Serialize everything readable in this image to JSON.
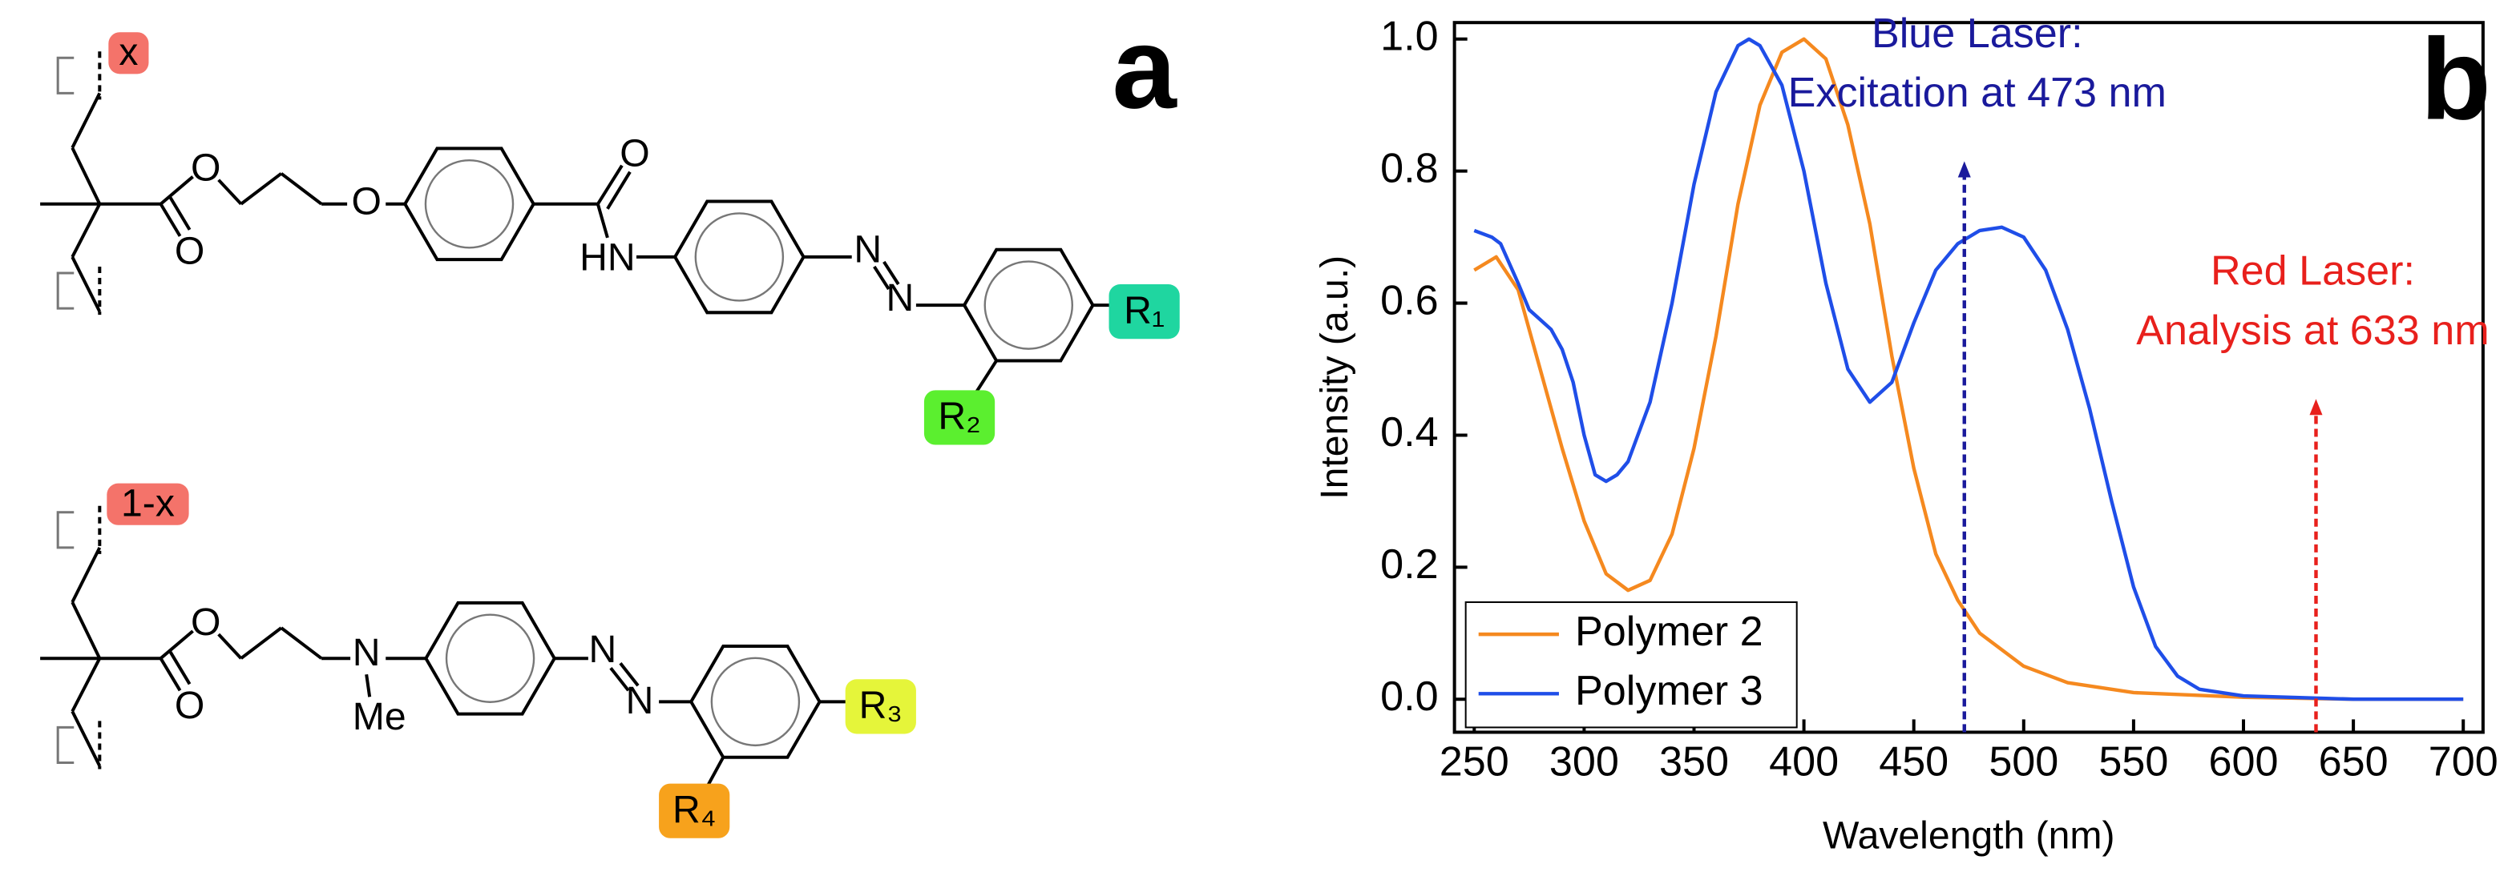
{
  "panels": [
    "a",
    "b"
  ],
  "structures": [
    {
      "fraction": "x",
      "atoms": [
        "O",
        "O",
        "O",
        "O",
        "HN",
        "N",
        "N"
      ],
      "substituents": [
        "R₁",
        "R₂"
      ]
    },
    {
      "fraction": "1-x",
      "atoms": [
        "O",
        "O",
        "N",
        "Me",
        "N",
        "N"
      ],
      "substituents": [
        "R₃",
        "R₄"
      ]
    }
  ],
  "chart_data": {
    "type": "line",
    "x_label": "Wavelength (nm)",
    "y_label": "Intensity (a.u.)",
    "xlim": [
      241,
      709
    ],
    "ylim": [
      -0.05,
      1.025
    ],
    "xticks": [
      250,
      300,
      350,
      400,
      450,
      500,
      550,
      600,
      650,
      700
    ],
    "yticks": [
      {
        "value": 0,
        "label": "0.0"
      },
      0.2,
      0.4,
      0.6,
      0.8,
      {
        "value": 1,
        "label": "1.0"
      }
    ],
    "legend": "lower left",
    "series": [
      {
        "name": "Polymer 2",
        "color": "#f5891f",
        "x": [
          250,
          260,
          270,
          280,
          290,
          300,
          310,
          320,
          330,
          340,
          350,
          360,
          370,
          380,
          390,
          400,
          410,
          420,
          430,
          440,
          450,
          460,
          470,
          480,
          500,
          520,
          550,
          600,
          650,
          700
        ],
        "values": [
          0.65,
          0.67,
          0.62,
          0.5,
          0.38,
          0.27,
          0.19,
          0.165,
          0.18,
          0.25,
          0.38,
          0.55,
          0.75,
          0.9,
          0.98,
          1.0,
          0.97,
          0.87,
          0.72,
          0.52,
          0.35,
          0.22,
          0.15,
          0.1,
          0.05,
          0.025,
          0.01,
          0.003,
          0.0,
          0.0
        ]
      },
      {
        "name": "Polymer 3",
        "color": "#1f4ee8",
        "x": [
          250,
          258,
          262,
          270,
          275,
          280,
          285,
          290,
          295,
          300,
          305,
          310,
          315,
          320,
          330,
          340,
          350,
          360,
          370,
          375,
          380,
          390,
          400,
          410,
          420,
          430,
          440,
          450,
          460,
          470,
          480,
          490,
          500,
          510,
          520,
          530,
          540,
          550,
          560,
          570,
          580,
          600,
          650,
          700
        ],
        "values": [
          0.71,
          0.7,
          0.69,
          0.63,
          0.59,
          0.575,
          0.56,
          0.53,
          0.48,
          0.4,
          0.34,
          0.33,
          0.34,
          0.36,
          0.45,
          0.6,
          0.78,
          0.92,
          0.99,
          1.0,
          0.99,
          0.93,
          0.8,
          0.63,
          0.5,
          0.45,
          0.48,
          0.57,
          0.65,
          0.69,
          0.71,
          0.715,
          0.7,
          0.65,
          0.56,
          0.44,
          0.3,
          0.17,
          0.08,
          0.035,
          0.015,
          0.005,
          0.0,
          0.0
        ]
      }
    ],
    "annotations": [
      {
        "text": [
          "Blue Laser:",
          "Excitation at 473 nm"
        ],
        "x": 473,
        "y": 0.81,
        "color": "#1a1a9c"
      },
      {
        "text": [
          "Red Laser:",
          "Analysis at 633 nm"
        ],
        "x": 633,
        "y": 0.45,
        "color": "#e8201c"
      }
    ]
  }
}
